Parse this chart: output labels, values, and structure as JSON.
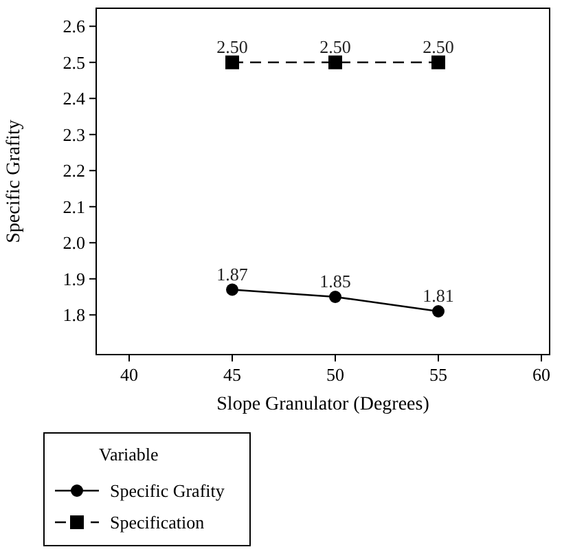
{
  "chart_data": {
    "type": "line",
    "xlabel": "Slope Granulator (Degrees)",
    "ylabel": "Specific Grafity",
    "x": [
      45,
      50,
      55
    ],
    "series": [
      {
        "name": "Specific Grafity",
        "color": "#000000",
        "values": [
          1.87,
          1.85,
          1.81
        ],
        "value_labels": [
          "1.87",
          "1.85",
          "1.81"
        ],
        "marker": "circle",
        "line_style": "solid"
      },
      {
        "name": "Specification",
        "color": "#000000",
        "values": [
          2.5,
          2.5,
          2.5
        ],
        "value_labels": [
          "2.50",
          "2.50",
          "2.50"
        ],
        "marker": "square",
        "line_style": "dashed"
      }
    ],
    "xlim": [
      38.4,
      60.4
    ],
    "ylim": [
      1.69,
      2.65
    ],
    "xticks": [
      40,
      45,
      50,
      55,
      60
    ],
    "yticks": [
      1.8,
      1.9,
      {
        "value": 2,
        "label": "2.0"
      },
      2.1,
      2.2,
      2.3,
      2.4,
      2.5,
      2.6
    ],
    "legend": "bottom",
    "legend_title": "Variable",
    "grid": false
  }
}
